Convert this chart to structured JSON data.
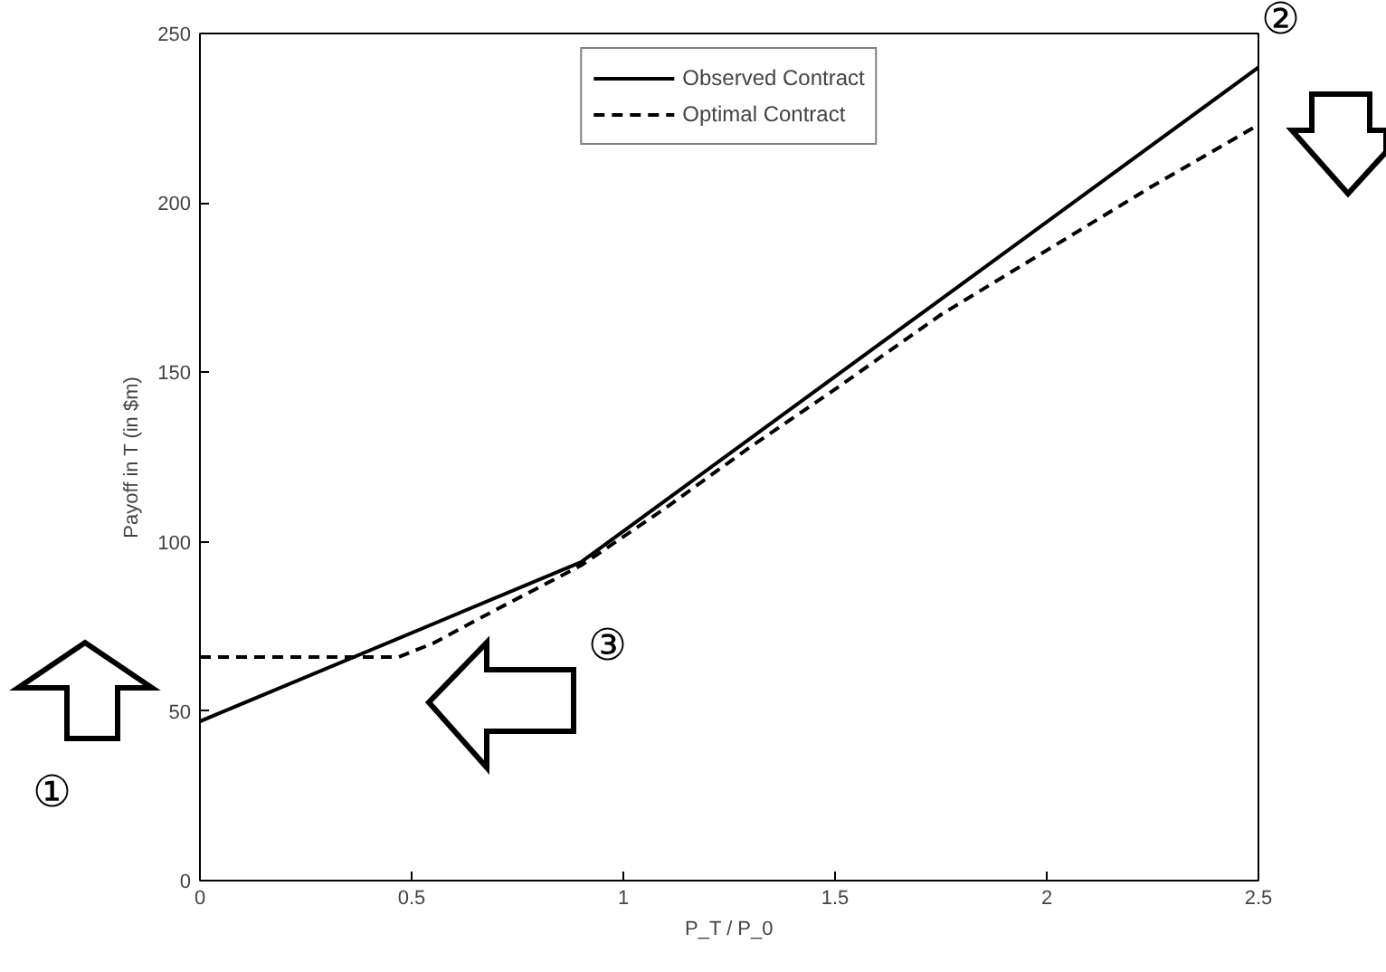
{
  "chart_data": {
    "type": "line",
    "xlabel": "P_T / P_0",
    "ylabel": "Payoff in T (in $m)",
    "xlim": [
      0,
      2.5
    ],
    "xticks": [
      0,
      0.5,
      1,
      1.5,
      2,
      2.5
    ],
    "ylim": [
      0,
      250
    ],
    "yticks": [
      0,
      50,
      100,
      150,
      200,
      250
    ],
    "grid": false,
    "legend": "top",
    "marker": "none",
    "series": [
      {
        "name": "Observed Contract",
        "color": "#000000",
        "line_style": "solid",
        "x": [
          0,
          0.9,
          2.5
        ],
        "values": [
          47,
          94,
          240
        ]
      },
      {
        "name": "Optimal Contract",
        "color": "#000000",
        "line_style": "dashed",
        "x": [
          0,
          0.47,
          0.55,
          0.7,
          0.9,
          1.1,
          1.3,
          1.5,
          1.75,
          2,
          2.25,
          2.5
        ],
        "values": [
          66,
          66,
          70,
          80,
          93,
          110,
          128,
          145,
          167,
          186,
          205,
          223
        ]
      }
    ],
    "annotations": [
      "①",
      "②",
      "③"
    ]
  }
}
